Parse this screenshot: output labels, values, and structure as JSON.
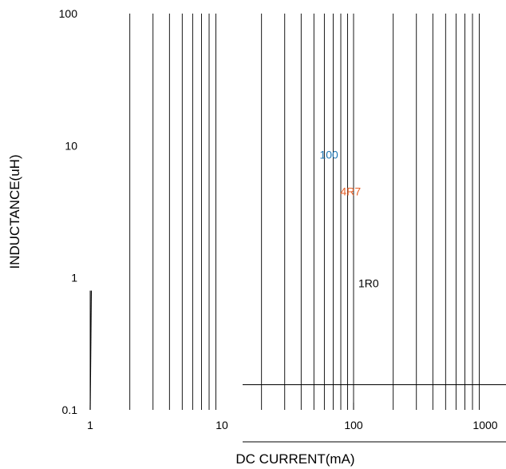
{
  "chart_data": {
    "type": "line",
    "title": "",
    "xlabel": "DC CURRENT(mA)",
    "ylabel": "INDUCTANCE(uH)",
    "x_scale": "log",
    "y_scale": "log",
    "xlim": [
      1,
      1000
    ],
    "ylim": [
      0.1,
      100
    ],
    "x_ticks": [
      1,
      10,
      100,
      1000
    ],
    "x_tick_labels": [
      "1",
      "10",
      "100",
      "1000"
    ],
    "y_ticks": [
      0.1,
      1,
      10,
      100
    ],
    "y_tick_labels": [
      "0.1",
      "1",
      "10",
      "100"
    ],
    "grid": "vertical minor gridlines at each log decade step",
    "series": [
      {
        "name": "100",
        "color": "#1f77b4",
        "label_at": {
          "x": 65,
          "y": 8
        }
      },
      {
        "name": "4R7",
        "color": "#e8622a",
        "label_at": {
          "x": 95,
          "y": 4.2
        }
      },
      {
        "name": "1R0",
        "color": "#000000",
        "label_at": {
          "x": 130,
          "y": 0.85
        }
      }
    ],
    "annotations": [
      {
        "type": "hline",
        "y": 0.155,
        "x_from": 14,
        "x_to": 1300
      },
      {
        "type": "segment",
        "x": [
          1,
          1.02
        ],
        "y": [
          0.1,
          0.8
        ]
      }
    ]
  }
}
